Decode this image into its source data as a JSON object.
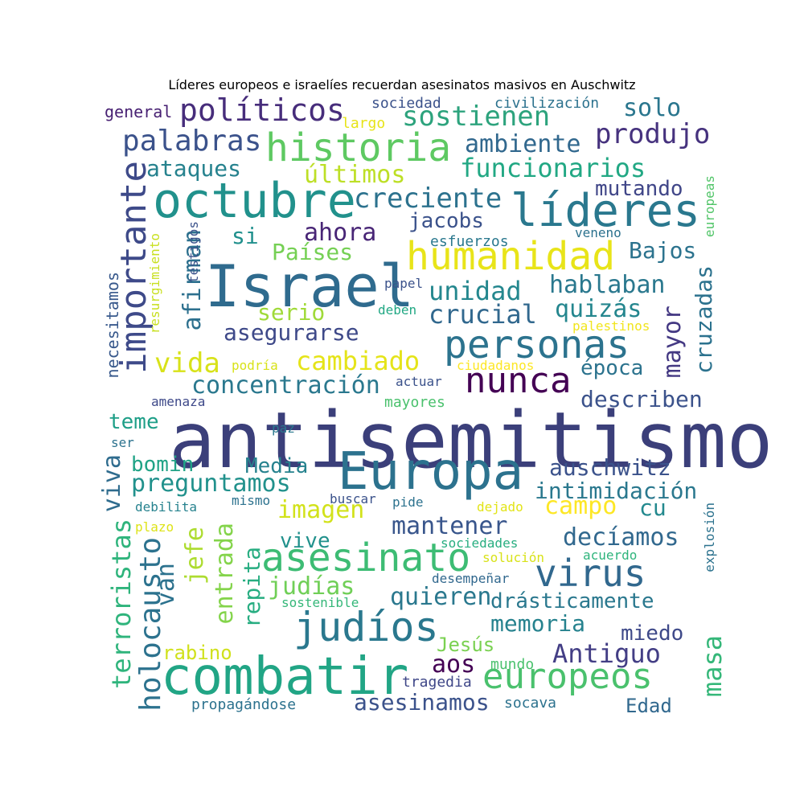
{
  "title": "Líderes europeos e israelíes recuerdan asesinatos masivos en Auschwitz",
  "palette": [
    "#440154",
    "#472d7b",
    "#3b528b",
    "#2c728e",
    "#21918c",
    "#28ae80",
    "#5ec962",
    "#addc30",
    "#fde725"
  ],
  "words": [
    {
      "text": "antisemitismo",
      "color": "#3b3f7a"
    },
    {
      "text": "Europa",
      "color": "#2c728e"
    },
    {
      "text": "Israel",
      "color": "#2f6b8e"
    },
    {
      "text": "combatir",
      "color": "#21a585"
    },
    {
      "text": "octubre",
      "color": "#21918c"
    },
    {
      "text": "líderes",
      "color": "#2a788e"
    },
    {
      "text": "historia",
      "color": "#5ec962"
    },
    {
      "text": "importante",
      "color": "#3e4a89"
    },
    {
      "text": "humanidad",
      "color": "#e8e419"
    },
    {
      "text": "asesinato",
      "color": "#3dbc74"
    },
    {
      "text": "personas",
      "color": "#2c738e"
    },
    {
      "text": "nunca",
      "color": "#440154"
    },
    {
      "text": "virus",
      "color": "#31688e"
    },
    {
      "text": "judíos",
      "color": "#2a788e"
    },
    {
      "text": "europeos",
      "color": "#4ac16d"
    },
    {
      "text": "políticos",
      "color": "#472d7b"
    },
    {
      "text": "palabras",
      "color": "#3b528b"
    },
    {
      "text": "sostienen",
      "color": "#2da37d"
    },
    {
      "text": "solo",
      "color": "#2a768e"
    },
    {
      "text": "produjo",
      "color": "#46327e"
    },
    {
      "text": "ambiente",
      "color": "#31688e"
    },
    {
      "text": "funcionarios",
      "color": "#22a884"
    },
    {
      "text": "ataques",
      "color": "#26828e"
    },
    {
      "text": "últimos",
      "color": "#bddf26"
    },
    {
      "text": "creciente",
      "color": "#2c728e"
    },
    {
      "text": "mutando",
      "color": "#404688"
    },
    {
      "text": "jacobs",
      "color": "#3b528b"
    },
    {
      "text": "ahora",
      "color": "#482576"
    },
    {
      "text": "si",
      "color": "#21908d"
    },
    {
      "text": "Países",
      "color": "#75d054"
    },
    {
      "text": "Bajos",
      "color": "#2c738e"
    },
    {
      "text": "unidad",
      "color": "#24878e"
    },
    {
      "text": "hablaban",
      "color": "#2a788e"
    },
    {
      "text": "crucial",
      "color": "#31688e"
    },
    {
      "text": "quizás",
      "color": "#24868e"
    },
    {
      "text": "serio",
      "color": "#a0da39"
    },
    {
      "text": "afirman",
      "color": "#2d708e"
    },
    {
      "text": "asegurarse",
      "color": "#3e4989"
    },
    {
      "text": "cruzadas",
      "color": "#2c728e"
    },
    {
      "text": "mayor",
      "color": "#443983"
    },
    {
      "text": "vida",
      "color": "#d8e219"
    },
    {
      "text": "cambiado",
      "color": "#e5e419"
    },
    {
      "text": "época",
      "color": "#2c738e"
    },
    {
      "text": "concentración",
      "color": "#2a788e"
    },
    {
      "text": "describen",
      "color": "#3b528b"
    },
    {
      "text": "teme",
      "color": "#1f9f88"
    },
    {
      "text": "viva",
      "color": "#2f6c8e"
    },
    {
      "text": "bomin",
      "color": "#20a386"
    },
    {
      "text": "Media",
      "color": "#26828e"
    },
    {
      "text": "preguntamos",
      "color": "#21918c"
    },
    {
      "text": "auschwitz",
      "color": "#3b528b"
    },
    {
      "text": "intimidación",
      "color": "#2a788e"
    },
    {
      "text": "campo",
      "color": "#fde725"
    },
    {
      "text": "cu",
      "color": "#23898e"
    },
    {
      "text": "imagen",
      "color": "#d2e21b"
    },
    {
      "text": "mantener",
      "color": "#39568c"
    },
    {
      "text": "decíamos",
      "color": "#31688e"
    },
    {
      "text": "holocausto",
      "color": "#2c728e"
    },
    {
      "text": "terroristas",
      "color": "#2fb47c"
    },
    {
      "text": "jefe",
      "color": "#addc30"
    },
    {
      "text": "entrada",
      "color": "#84d44b"
    },
    {
      "text": "repita",
      "color": "#27ad81"
    },
    {
      "text": "vive",
      "color": "#21918c"
    },
    {
      "text": "judías",
      "color": "#70cf57"
    },
    {
      "text": "quieren",
      "color": "#2a788e"
    },
    {
      "text": "drásticamente",
      "color": "#2a788e"
    },
    {
      "text": "van",
      "color": "#2c728e"
    },
    {
      "text": "memoria",
      "color": "#26828e"
    },
    {
      "text": "miedo",
      "color": "#3e4989"
    },
    {
      "text": "rabino",
      "color": "#d0e11c"
    },
    {
      "text": "Jesús",
      "color": "#7ad151"
    },
    {
      "text": "Antiguo",
      "color": "#433e85"
    },
    {
      "text": "aos",
      "color": "#440154"
    },
    {
      "text": "masa",
      "color": "#35b779"
    },
    {
      "text": "asesinamos",
      "color": "#3b528b"
    },
    {
      "text": "Edad",
      "color": "#31688e"
    },
    {
      "text": "propagándose",
      "color": "#2c728e"
    },
    {
      "text": "tragedia",
      "color": "#3f4788"
    },
    {
      "text": "mundo",
      "color": "#4ac16d"
    },
    {
      "text": "socava",
      "color": "#2c728e"
    },
    {
      "text": "general",
      "color": "#482173"
    },
    {
      "text": "sociedad",
      "color": "#3b528b"
    },
    {
      "text": "civilización",
      "color": "#2c728e"
    },
    {
      "text": "largo",
      "color": "#e7e419"
    },
    {
      "text": "testigos",
      "color": "#3b528b"
    },
    {
      "text": "resurgimiento",
      "color": "#c8e020"
    },
    {
      "text": "necesitamos",
      "color": "#38598c"
    },
    {
      "text": "europeas",
      "color": "#52c569"
    },
    {
      "text": "veneno",
      "color": "#2c728e"
    },
    {
      "text": "esfuerzos",
      "color": "#2a788e"
    },
    {
      "text": "papel",
      "color": "#3b528b"
    },
    {
      "text": "deben",
      "color": "#22a884"
    },
    {
      "text": "palestinos",
      "color": "#f1e51d"
    },
    {
      "text": "podría",
      "color": "#d8e219"
    },
    {
      "text": "ciudadanos",
      "color": "#fde725"
    },
    {
      "text": "actuar",
      "color": "#3b528b"
    },
    {
      "text": "amenaza",
      "color": "#3e4989"
    },
    {
      "text": "mayores",
      "color": "#4ac16d"
    },
    {
      "text": "paz",
      "color": "#2a788e"
    },
    {
      "text": "ser",
      "color": "#2c728e"
    },
    {
      "text": "debilita",
      "color": "#26828e"
    },
    {
      "text": "mismo",
      "color": "#2c728e"
    },
    {
      "text": "buscar",
      "color": "#3b528b"
    },
    {
      "text": "pide",
      "color": "#2c728e"
    },
    {
      "text": "dejado",
      "color": "#e2e418"
    },
    {
      "text": "plazo",
      "color": "#dde318"
    },
    {
      "text": "sociedades",
      "color": "#28ae80"
    },
    {
      "text": "solución",
      "color": "#d8e219"
    },
    {
      "text": "acuerdo",
      "color": "#2fb47c"
    },
    {
      "text": "explosión",
      "color": "#2c728e"
    },
    {
      "text": "desempeñar",
      "color": "#31688e"
    },
    {
      "text": "sostenible",
      "color": "#35b779"
    }
  ]
}
